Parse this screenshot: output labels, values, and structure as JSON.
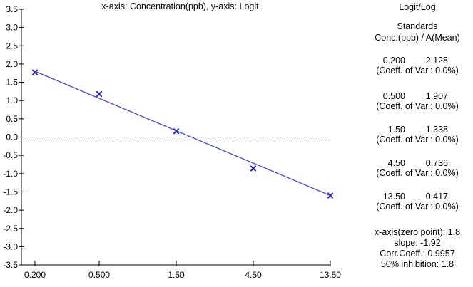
{
  "chart": {
    "title": "x-axis: Concentration(ppb), y-axis: Logit"
  },
  "panel": {
    "title": "Logit/Log",
    "subtitle": "Standards",
    "columns_header": "Conc.(ppb) / A(Mean)",
    "standards": [
      {
        "conc": "0.200",
        "mean": "2.128",
        "cv": "(Coeff. of Var.: 0.0%)"
      },
      {
        "conc": "0.500",
        "mean": "1.907",
        "cv": "(Coeff. of Var.: 0.0%)"
      },
      {
        "conc": "1.50",
        "mean": "1.338",
        "cv": "(Coeff. of Var.: 0.0%)"
      },
      {
        "conc": "4.50",
        "mean": "0.736",
        "cv": "(Coeff. of Var.: 0.0%)"
      },
      {
        "conc": "13.50",
        "mean": "0.417",
        "cv": "(Coeff. of Var.: 0.0%)"
      }
    ],
    "results": [
      "x-axis(zero point): 1.8",
      "slope: -1.92",
      "Corr.Coeff.: 0.9957",
      "50% inhibition: 1.8"
    ]
  },
  "chart_data": {
    "type": "scatter",
    "title": "x-axis: Concentration(ppb), y-axis: Logit",
    "xlabel": "Concentration(ppb)",
    "ylabel": "Logit",
    "x_scale": "log",
    "grid": false,
    "xlim": [
      0.2,
      13.5
    ],
    "ylim": [
      -3.5,
      3.5
    ],
    "x_tick_labels": [
      "0.200",
      "0.500",
      "1.50",
      "4.50",
      "13.50"
    ],
    "x": [
      0.2,
      0.5,
      1.5,
      4.5,
      13.5
    ],
    "y": [
      1.77,
      1.18,
      0.16,
      -0.86,
      -1.6
    ],
    "y_tick_labels": [
      "3.5",
      "3.0",
      "2.5",
      "2.0",
      "1.5",
      "1.0",
      "0.5",
      "0.0",
      "-0.5",
      "-1.0",
      "-1.5",
      "-2.0",
      "-2.5",
      "-3.0",
      "-3.5"
    ],
    "zero_line_y": 0.0,
    "fit_line": {
      "slope_per_decade": -1.92,
      "x_at_logit_zero": 1.8,
      "corr_coeff": 0.9957,
      "x": [
        0.2,
        13.5
      ],
      "y": [
        1.8,
        -1.6
      ]
    },
    "marker_color": "#2727cc",
    "line_color": "#4444dd",
    "axis_color": "#000000"
  }
}
